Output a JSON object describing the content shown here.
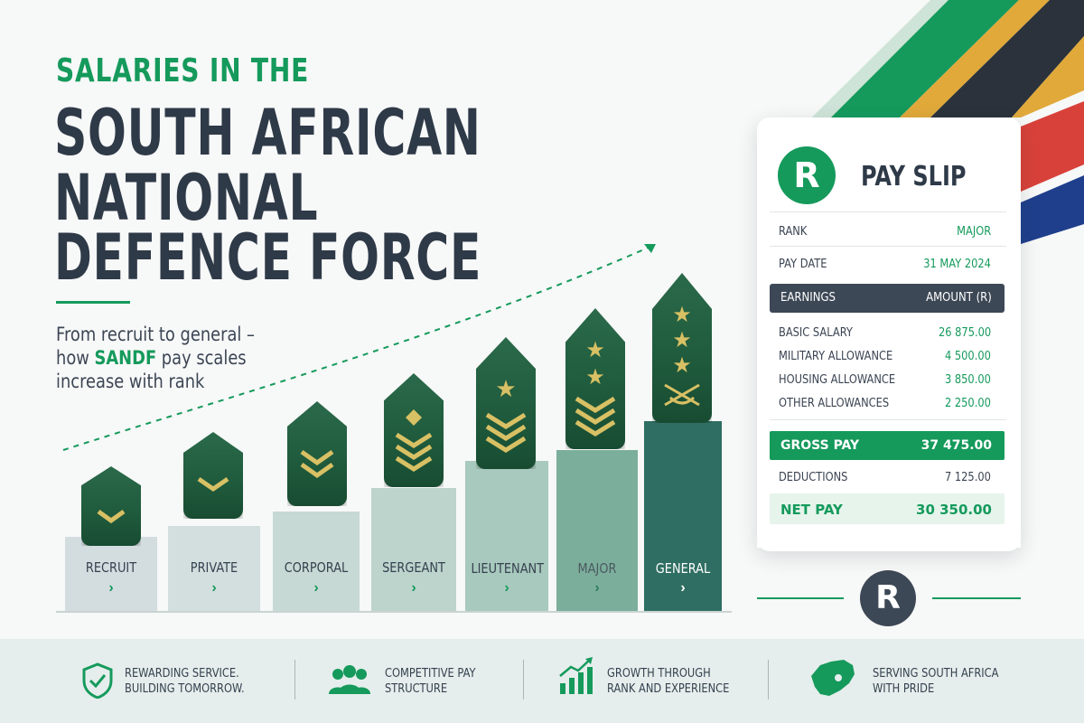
{
  "title": {
    "kicker": "SALARIES IN THE",
    "line1": "SOUTH AFRICAN",
    "line2": "NATIONAL",
    "line3": "DEFENCE FORCE"
  },
  "subtitle": {
    "line1": "From recruit to general –",
    "line2_pre": "how ",
    "line2_highlight": "SANDF",
    "line2_post": " pay scales",
    "line3": "increase with rank"
  },
  "ranks": [
    {
      "label": "RECRUIT",
      "chevron": "›"
    },
    {
      "label": "PRIVATE",
      "chevron": "›"
    },
    {
      "label": "CORPORAL",
      "chevron": "›"
    },
    {
      "label": "SERGEANT",
      "chevron": "›"
    },
    {
      "label": "LIEUTENANT",
      "chevron": "›"
    },
    {
      "label": "MAJOR",
      "chevron": "›"
    },
    {
      "label": "GENERAL",
      "chevron": "›"
    }
  ],
  "pay_slip": {
    "logo": "R",
    "title": "PAY SLIP",
    "rank_label": "RANK",
    "rank_value": "MAJOR",
    "date_label": "PAY DATE",
    "date_value": "31 MAY 2024",
    "earnings_header": "EARNINGS",
    "amount_header": "AMOUNT (R)",
    "items": [
      {
        "label": "BASIC SALARY",
        "value": "26 875.00"
      },
      {
        "label": "MILITARY ALLOWANCE",
        "value": "4 500.00"
      },
      {
        "label": "HOUSING ALLOWANCE",
        "value": "3 850.00"
      },
      {
        "label": "OTHER ALLOWANCES",
        "value": "2 250.00"
      }
    ],
    "gross_label": "GROSS PAY",
    "gross_value": "37 475.00",
    "deductions_label": "DEDUCTIONS",
    "deductions_value": "7 125.00",
    "net_label": "NET PAY",
    "net_value": "30 350.00"
  },
  "badge": "R",
  "features": [
    {
      "icon": "shield-check-icon",
      "line1": "REWARDING SERVICE.",
      "line2": "BUILDING TOMORROW."
    },
    {
      "icon": "people-group-icon",
      "line1": "COMPETITIVE PAY",
      "line2": "STRUCTURE"
    },
    {
      "icon": "growth-chart-icon",
      "line1": "GROWTH THROUGH",
      "line2": "RANK AND EXPERIENCE"
    },
    {
      "icon": "south-africa-map-icon",
      "line1": "SERVING SOUTH AFRICA",
      "line2": "WITH PRIDE"
    }
  ],
  "colors": {
    "green": "#159a5c",
    "navy": "#2f3a48",
    "flag_gold": "#e0a93a",
    "flag_red": "#d8413a",
    "flag_blue": "#1f3f8c",
    "flag_black": "#2b323b"
  }
}
